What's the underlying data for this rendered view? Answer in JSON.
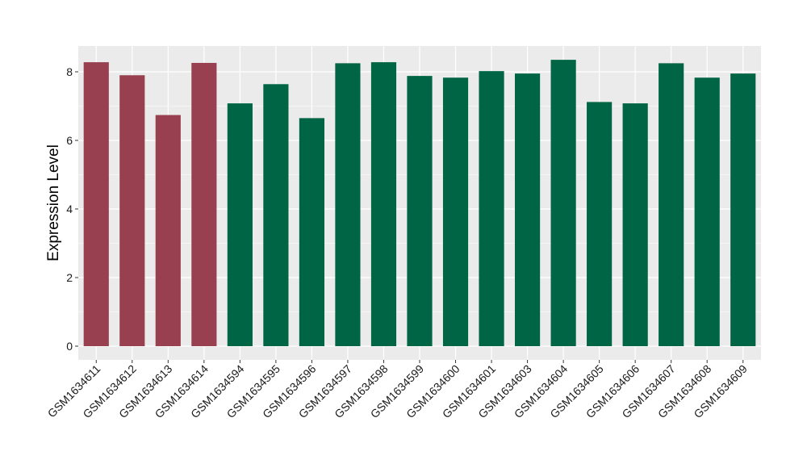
{
  "chart_data": {
    "type": "bar",
    "title": "",
    "xlabel": "",
    "ylabel": "Expression Level",
    "ylim": [
      0,
      8.75
    ],
    "yticks": [
      0,
      2,
      4,
      6,
      8
    ],
    "grid": true,
    "legend": "none",
    "background_color": "#ebebeb",
    "gridline_color": "#ffffff",
    "categories": [
      "GSM1634611",
      "GSM1634612",
      "GSM1634613",
      "GSM1634614",
      "GSM1634594",
      "GSM1634595",
      "GSM1634596",
      "GSM1634597",
      "GSM1634598",
      "GSM1634599",
      "GSM1634600",
      "GSM1634601",
      "GSM1634603",
      "GSM1634604",
      "GSM1634605",
      "GSM1634606",
      "GSM1634607",
      "GSM1634608",
      "GSM1634609"
    ],
    "values": [
      8.28,
      7.9,
      6.74,
      8.26,
      7.08,
      7.64,
      6.65,
      8.25,
      8.28,
      7.88,
      7.83,
      8.02,
      7.95,
      8.35,
      7.12,
      7.08,
      8.25,
      7.83,
      7.95
    ],
    "groups": [
      "a",
      "a",
      "a",
      "a",
      "b",
      "b",
      "b",
      "b",
      "b",
      "b",
      "b",
      "b",
      "b",
      "b",
      "b",
      "b",
      "b",
      "b",
      "b"
    ],
    "group_colors": {
      "a": "#98404f",
      "b": "#006544"
    }
  }
}
